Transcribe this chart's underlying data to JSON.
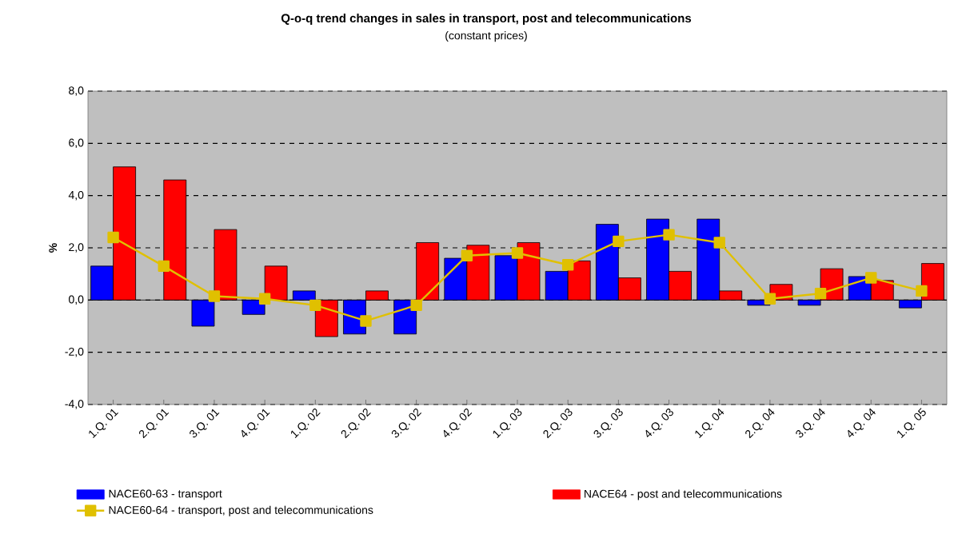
{
  "chart_data": {
    "type": "bar",
    "title": "Q-o-q trend changes in sales in transport, post and telecommunications",
    "subtitle": "(constant prices)",
    "ylabel": "%",
    "categories": [
      "1.Q. 01",
      "2.Q. 01",
      "3.Q. 01",
      "4.Q. 01",
      "1.Q. 02",
      "2.Q. 02",
      "3.Q. 02",
      "4.Q. 02",
      "1.Q. 03",
      "2.Q. 03",
      "3.Q. 03",
      "4.Q. 03",
      "1.Q. 04",
      "2.Q. 04",
      "3.Q. 04",
      "4.Q. 04",
      "1.Q. 05"
    ],
    "series": [
      {
        "name": "NACE60-63 - transport",
        "color": "#0000ff",
        "values": [
          1.3,
          null,
          -1.0,
          -0.55,
          0.35,
          -1.3,
          -1.3,
          1.6,
          1.7,
          1.1,
          2.9,
          3.1,
          3.1,
          -0.2,
          -0.2,
          0.9,
          -0.3
        ]
      },
      {
        "name": "NACE64 - post and telecommunications",
        "color": "#ff0000",
        "values": [
          5.1,
          4.6,
          2.7,
          1.3,
          -1.4,
          0.35,
          2.2,
          2.1,
          2.2,
          1.5,
          0.85,
          1.1,
          0.35,
          0.6,
          1.2,
          0.75,
          1.4
        ]
      },
      {
        "name": "NACE60-64 - transport, post and telecommunications",
        "type": "line",
        "marker": "square",
        "color": "#e0c000",
        "values": [
          2.4,
          1.3,
          0.15,
          0.05,
          -0.2,
          -0.8,
          -0.2,
          1.7,
          1.8,
          1.35,
          2.25,
          2.5,
          2.2,
          0.05,
          0.25,
          0.85,
          0.35
        ]
      }
    ],
    "ylim": [
      -4,
      8
    ],
    "yticks": [
      {
        "value": -4,
        "label": "-4,0"
      },
      {
        "value": -2,
        "label": "-2,0"
      },
      {
        "value": 0,
        "label": "0,0"
      },
      {
        "value": 2,
        "label": "2,0"
      },
      {
        "value": 4,
        "label": "4,0"
      },
      {
        "value": 6,
        "label": "6,0"
      },
      {
        "value": 8,
        "label": "8,0"
      }
    ],
    "grid": "y",
    "legend": "bottom"
  }
}
